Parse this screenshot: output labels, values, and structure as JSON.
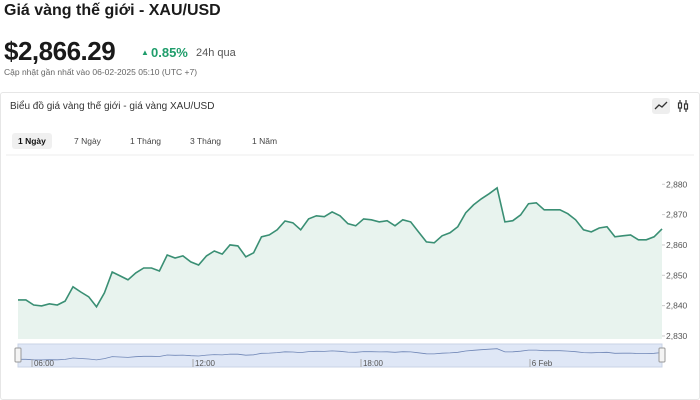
{
  "header": {
    "title": "Giá vàng thế giới - XAU/USD",
    "price": "$2,866.29",
    "change": "0.85%",
    "change_period": "24h qua",
    "updated": "Cập nhật gần nhất vào 06-02-2025 05:10 (UTC +7)"
  },
  "card": {
    "title": "Biểu đồ giá vàng thế giới - giá vàng XAU/USD",
    "tabs": [
      "1 Ngày",
      "7 Ngày",
      "1 Tháng",
      "3 Tháng",
      "1 Năm"
    ],
    "active_tab": 0
  },
  "navigator_labels": [
    "06:00",
    "12:00",
    "18:00",
    "6 Feb"
  ],
  "chart_data": {
    "type": "area",
    "color": "#3a8f74",
    "fill": "#e8f3ee",
    "values": [
      2841.9,
      2841.9,
      2840.2,
      2839.9,
      2840.6,
      2840.2,
      2841.5,
      2846.2,
      2844.5,
      2842.9,
      2839.6,
      2844.2,
      2851.1,
      2849.8,
      2848.5,
      2850.8,
      2852.4,
      2852.4,
      2851.4,
      2856.7,
      2855.7,
      2856.4,
      2854.4,
      2853.4,
      2856.4,
      2858.0,
      2857.0,
      2860.0,
      2859.7,
      2856.1,
      2857.4,
      2862.7,
      2863.3,
      2865.0,
      2867.9,
      2867.3,
      2865.0,
      2868.6,
      2869.6,
      2869.3,
      2870.9,
      2869.6,
      2867.0,
      2866.3,
      2868.6,
      2868.3,
      2867.6,
      2868.0,
      2866.3,
      2868.3,
      2867.6,
      2864.3,
      2861.0,
      2860.7,
      2863.0,
      2864.0,
      2866.0,
      2870.6,
      2873.2,
      2875.2,
      2876.9,
      2878.8,
      2867.6,
      2868.0,
      2869.9,
      2873.6,
      2873.9,
      2871.6,
      2871.6,
      2871.6,
      2870.3,
      2868.3,
      2865.0,
      2864.3,
      2865.6,
      2866.0,
      2862.7,
      2863.0,
      2863.3,
      2861.7,
      2861.7,
      2862.7,
      2865.3
    ],
    "ylim": [
      2829,
      2888
    ],
    "yticks": [
      {
        "value": 2830,
        "label": "2,830"
      },
      {
        "value": 2840,
        "label": "2,840"
      },
      {
        "value": 2850,
        "label": "2,850"
      },
      {
        "value": 2860,
        "label": "2,860"
      },
      {
        "value": 2870,
        "label": "2,870"
      },
      {
        "value": 2880,
        "label": "2,880"
      }
    ]
  }
}
